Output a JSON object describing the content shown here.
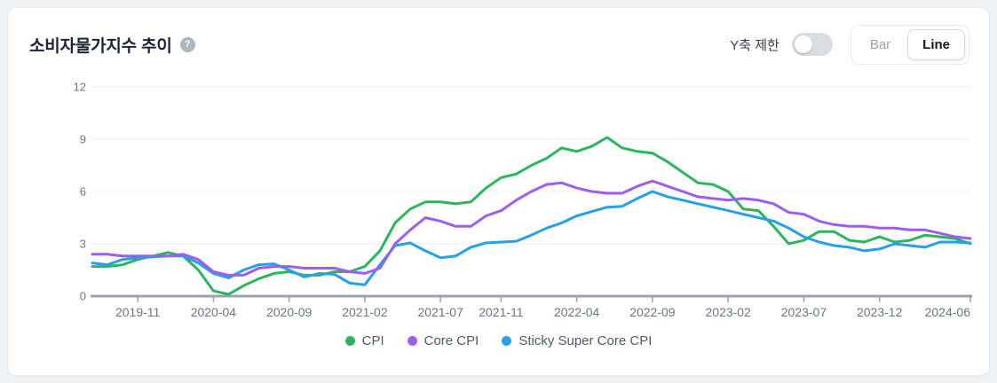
{
  "card": {
    "title": "소비자물가지수 추이",
    "help_icon": "?"
  },
  "controls": {
    "y_axis_limit_label": "Y축 제한",
    "y_axis_limit_toggle_state": "off",
    "chart_type_options": [
      "Bar",
      "Line"
    ],
    "selected_chart_type": "Line"
  },
  "chart_data": {
    "type": "line",
    "x": [
      "2019-08",
      "2019-09",
      "2019-10",
      "2019-11",
      "2019-12",
      "2020-01",
      "2020-02",
      "2020-03",
      "2020-04",
      "2020-05",
      "2020-06",
      "2020-07",
      "2020-08",
      "2020-09",
      "2020-10",
      "2020-11",
      "2020-12",
      "2021-01",
      "2021-02",
      "2021-03",
      "2021-04",
      "2021-05",
      "2021-06",
      "2021-07",
      "2021-08",
      "2021-09",
      "2021-10",
      "2021-11",
      "2021-12",
      "2022-01",
      "2022-02",
      "2022-03",
      "2022-04",
      "2022-05",
      "2022-06",
      "2022-07",
      "2022-08",
      "2022-09",
      "2022-10",
      "2022-11",
      "2022-12",
      "2023-01",
      "2023-02",
      "2023-03",
      "2023-04",
      "2023-05",
      "2023-06",
      "2023-07",
      "2023-08",
      "2023-09",
      "2023-10",
      "2023-11",
      "2023-12",
      "2024-01",
      "2024-02",
      "2024-03",
      "2024-04",
      "2024-05",
      "2024-06"
    ],
    "x_tick_indices": [
      3,
      8,
      13,
      18,
      23,
      27,
      32,
      37,
      42,
      47,
      52,
      58
    ],
    "x_tick_labels": [
      "2019-11",
      "2020-04",
      "2020-09",
      "2021-02",
      "2021-07",
      "2021-11",
      "2022-04",
      "2022-09",
      "2023-02",
      "2023-07",
      "2023-12",
      "2024-06"
    ],
    "y_ticks": [
      0,
      3,
      6,
      9,
      12
    ],
    "ylim": [
      0,
      12
    ],
    "grid": "horizontal-only",
    "legend_position": "bottom",
    "series": [
      {
        "name": "CPI",
        "color": "#2db45f",
        "values": [
          1.7,
          1.7,
          1.8,
          2.1,
          2.3,
          2.5,
          2.3,
          1.5,
          0.3,
          0.1,
          0.6,
          1.0,
          1.3,
          1.4,
          1.2,
          1.2,
          1.4,
          1.4,
          1.7,
          2.6,
          4.2,
          5.0,
          5.4,
          5.4,
          5.3,
          5.4,
          6.2,
          6.8,
          7.0,
          7.5,
          7.9,
          8.5,
          8.3,
          8.6,
          9.1,
          8.5,
          8.3,
          8.2,
          7.7,
          7.1,
          6.5,
          6.4,
          6.0,
          5.0,
          4.9,
          4.0,
          3.0,
          3.2,
          3.7,
          3.7,
          3.2,
          3.1,
          3.4,
          3.1,
          3.2,
          3.5,
          3.4,
          3.3,
          3.0
        ]
      },
      {
        "name": "Core CPI",
        "color": "#9d5ef0",
        "values": [
          2.4,
          2.4,
          2.3,
          2.3,
          2.3,
          2.3,
          2.4,
          2.1,
          1.4,
          1.2,
          1.2,
          1.6,
          1.7,
          1.7,
          1.6,
          1.6,
          1.6,
          1.4,
          1.3,
          1.6,
          3.0,
          3.8,
          4.5,
          4.3,
          4.0,
          4.0,
          4.6,
          4.9,
          5.5,
          6.0,
          6.4,
          6.5,
          6.2,
          6.0,
          5.9,
          5.9,
          6.3,
          6.6,
          6.3,
          6.0,
          5.7,
          5.6,
          5.5,
          5.6,
          5.5,
          5.3,
          4.8,
          4.7,
          4.3,
          4.1,
          4.0,
          4.0,
          3.9,
          3.9,
          3.8,
          3.8,
          3.6,
          3.4,
          3.3
        ]
      },
      {
        "name": "Sticky Super Core CPI",
        "color": "#27a0e5",
        "values": [
          1.9,
          1.8,
          2.1,
          2.2,
          2.25,
          2.3,
          2.3,
          1.9,
          1.3,
          1.05,
          1.5,
          1.8,
          1.85,
          1.5,
          1.1,
          1.3,
          1.25,
          0.75,
          0.65,
          1.8,
          2.9,
          3.05,
          2.6,
          2.2,
          2.3,
          2.8,
          3.05,
          3.1,
          3.15,
          3.5,
          3.9,
          4.2,
          4.6,
          4.85,
          5.1,
          5.15,
          5.6,
          6.0,
          5.7,
          5.5,
          5.3,
          5.1,
          4.9,
          4.7,
          4.5,
          4.3,
          3.9,
          3.4,
          3.1,
          2.9,
          2.8,
          2.6,
          2.7,
          3.0,
          2.9,
          2.8,
          3.1,
          3.1,
          3.05
        ]
      }
    ],
    "axis_colors": {
      "axis_line": "#9aa3ae",
      "tick_label": "#6b7684",
      "gridline": "#eceef1"
    }
  }
}
